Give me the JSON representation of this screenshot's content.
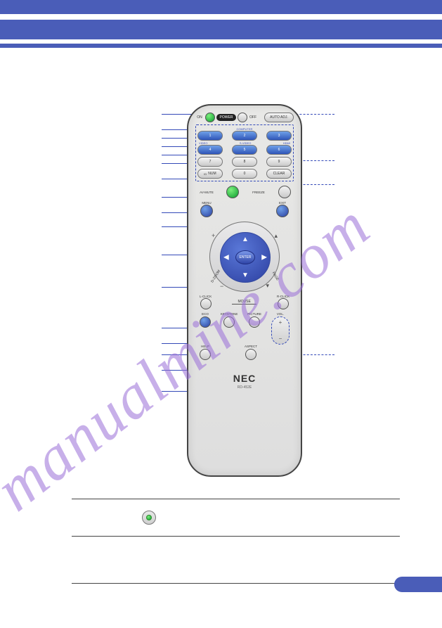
{
  "watermark_text": "manualmine.com",
  "brand": "NEC",
  "model": "RD-452E",
  "top_row": {
    "power_on": "ON",
    "power_label": "POWER",
    "power_off": "OFF",
    "auto_adj": "AUTO ADJ."
  },
  "input_labels_row1": [
    "",
    "COMPUTER",
    ""
  ],
  "input_buttons_row1": [
    "1",
    "2",
    "3"
  ],
  "input_labels_row2": [
    "VIDEO",
    "S-VIDEO",
    "HDMI"
  ],
  "input_buttons_row2": [
    "4",
    "5",
    "6"
  ],
  "input_buttons_row3": [
    "7",
    "8",
    "9"
  ],
  "num_row": {
    "id": "ID",
    "num": "NUM",
    "zero": "0",
    "clear": "CLEAR"
  },
  "av_row": {
    "avmute": "AV-MUTE",
    "freeze": "FREEZE"
  },
  "menu_row": {
    "menu": "MENU",
    "exit": "EXIT"
  },
  "enter": "ENTER",
  "ring": {
    "dzoom": "D-ZOOM",
    "page": "PAGE"
  },
  "mouse_row": {
    "l": "L-CLICK",
    "mouse": "MOUSE",
    "r": "R-CLICK"
  },
  "bot_row1": {
    "eco": "ECO",
    "keystone": "KEYSTONE",
    "picture": "PICTURE",
    "vol": "VOL."
  },
  "bot_row2": {
    "help": "HELP",
    "aspect": "ASPECT"
  },
  "colors": {
    "bar": "#4a5db8",
    "accent": "#3349b8",
    "green": "#0a9a2e",
    "watermark": "#9b6fd8",
    "blue_btn": "#2f55b8"
  },
  "leader_lines_left_y": [
    94,
    116,
    128,
    140,
    152,
    164,
    186,
    212,
    234,
    254,
    294,
    340,
    398,
    420,
    436,
    458,
    488
  ],
  "leader_lines_right_y": [
    94,
    160,
    194,
    436
  ],
  "below_hr_count": 3
}
